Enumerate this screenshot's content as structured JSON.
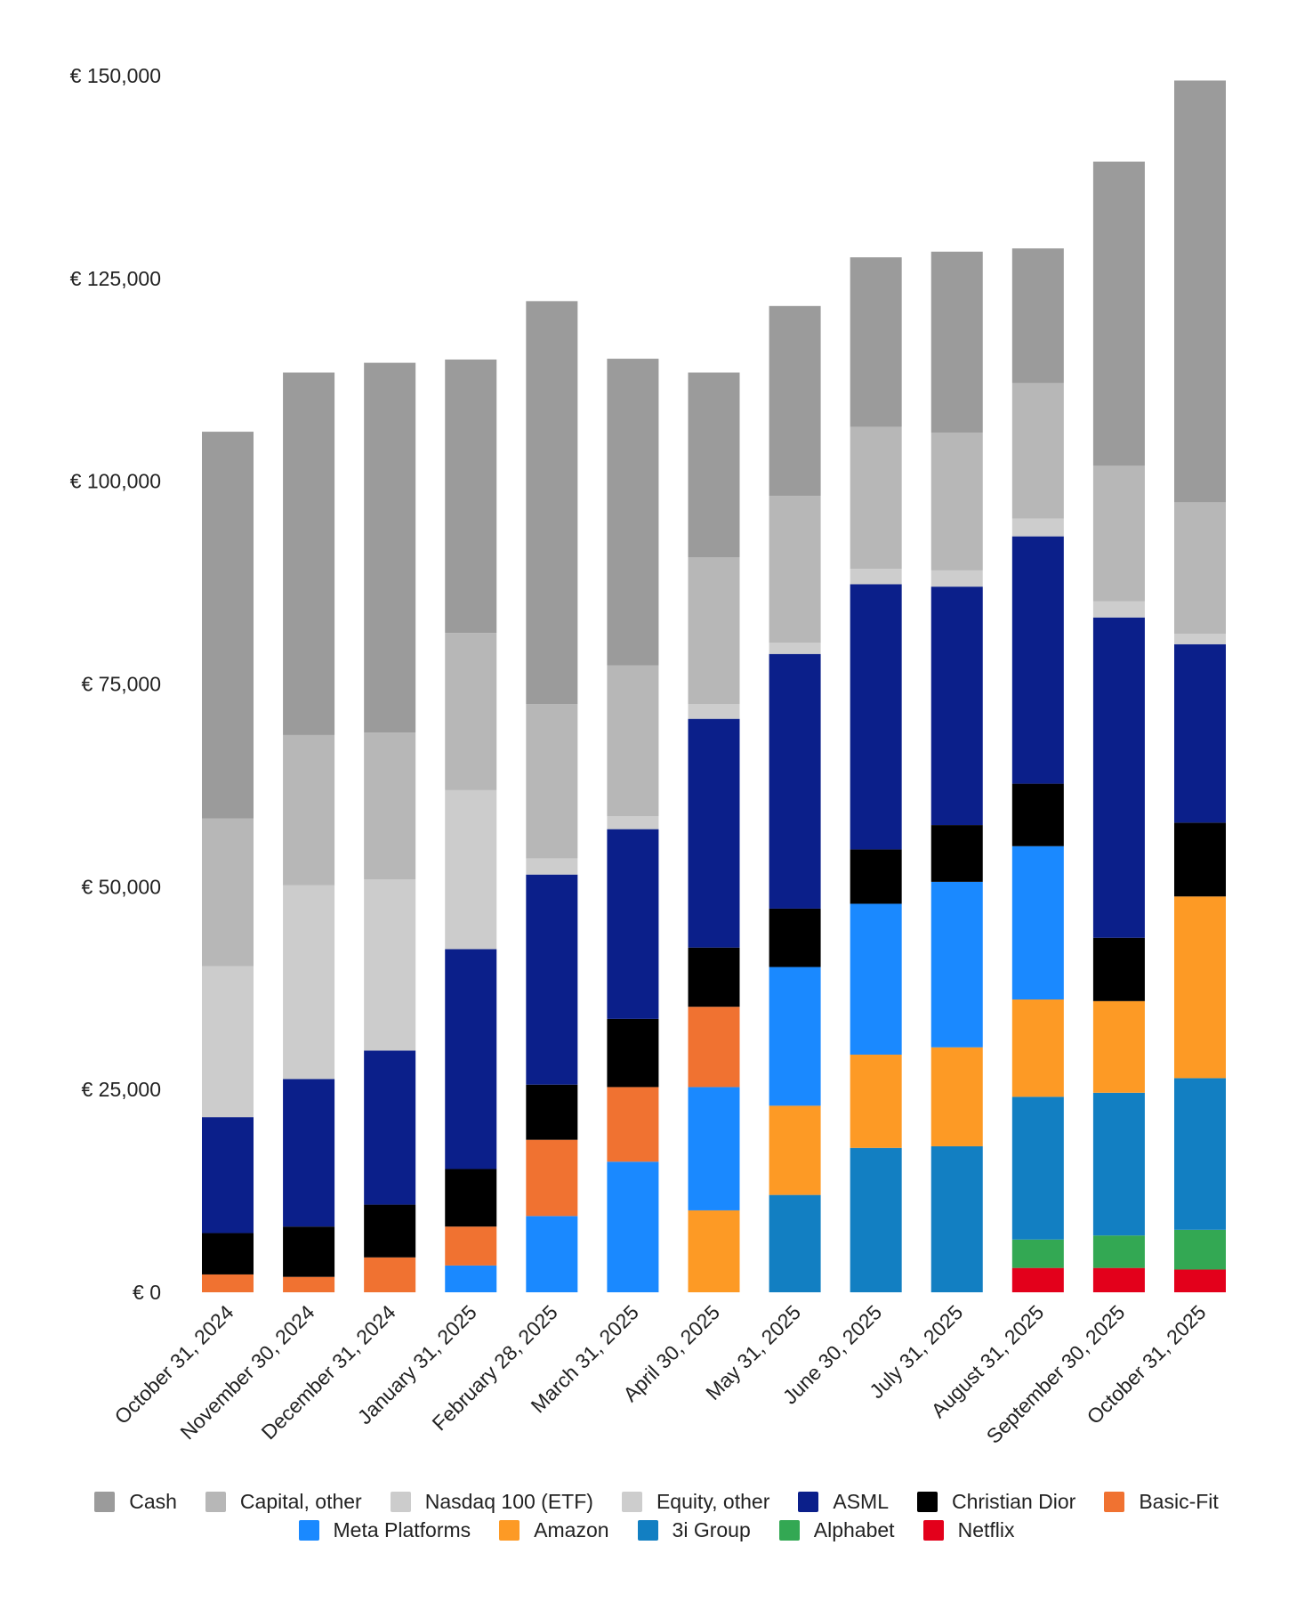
{
  "chart_data": {
    "type": "bar",
    "stacked": true,
    "title": "",
    "xlabel": "",
    "ylabel": "",
    "ylim": [
      0,
      150000
    ],
    "yticks": [
      0,
      25000,
      50000,
      75000,
      100000,
      125000,
      150000
    ],
    "ytick_labels": [
      "€ 0",
      "€ 25,000",
      "€ 50,000",
      "€ 75,000",
      "€ 100,000",
      "€ 125,000",
      "€ 150,000"
    ],
    "grid": false,
    "legend_position": "bottom",
    "categories": [
      "October 31, 2024",
      "November 30, 2024",
      "December 31, 2024",
      "January 31, 2025",
      "February 28, 2025",
      "March 31, 2025",
      "April 30, 2025",
      "May 31, 2025",
      "June 30, 2025",
      "July 31, 2025",
      "August 31, 2025",
      "September 30, 2025",
      "October 31, 2025"
    ],
    "series": [
      {
        "name": "Netflix",
        "color": "#e3001b",
        "values": [
          0,
          0,
          0,
          0,
          0,
          0,
          0,
          0,
          0,
          0,
          3000,
          3000,
          2800
        ]
      },
      {
        "name": "Alphabet",
        "color": "#33a853",
        "values": [
          0,
          0,
          0,
          0,
          0,
          0,
          0,
          0,
          0,
          0,
          3500,
          4000,
          4900
        ]
      },
      {
        "name": "3i Group",
        "color": "#127fc2",
        "values": [
          0,
          0,
          0,
          0,
          0,
          0,
          0,
          12000,
          17800,
          18000,
          17600,
          17600,
          18700
        ]
      },
      {
        "name": "Amazon",
        "color": "#fd9a25",
        "values": [
          0,
          0,
          0,
          0,
          0,
          0,
          10100,
          11000,
          11500,
          12200,
          12000,
          11300,
          22400
        ]
      },
      {
        "name": "Meta Platforms",
        "color": "#1a89ff",
        "values": [
          0,
          0,
          0,
          3300,
          9400,
          16100,
          15200,
          17100,
          18600,
          20400,
          18900,
          0,
          0
        ]
      },
      {
        "name": "Basic-Fit",
        "color": "#f07231",
        "values": [
          2200,
          1900,
          4300,
          4800,
          9400,
          9200,
          9900,
          0,
          0,
          0,
          0,
          0,
          0
        ]
      },
      {
        "name": "Christian Dior",
        "color": "#000000",
        "values": [
          5100,
          6200,
          6500,
          7100,
          6800,
          8400,
          7300,
          7200,
          6700,
          7000,
          7700,
          7800,
          9100
        ]
      },
      {
        "name": "ASML",
        "color": "#0b1f8a",
        "values": [
          14300,
          18200,
          19000,
          27100,
          25900,
          23400,
          28200,
          31400,
          32700,
          29400,
          30500,
          39500,
          22000
        ]
      },
      {
        "name": "Equity, other",
        "color": "#cdcdcd",
        "values": [
          0,
          0,
          0,
          0,
          2000,
          1600,
          1800,
          1400,
          1900,
          2000,
          2200,
          2000,
          1300
        ]
      },
      {
        "name": "Nasdaq 100 (ETF)",
        "color": "#cccccc",
        "values": [
          18600,
          23900,
          21100,
          19600,
          0,
          0,
          0,
          0,
          0,
          0,
          0,
          0,
          0
        ]
      },
      {
        "name": "Capital, other",
        "color": "#b7b7b7",
        "values": [
          18200,
          18500,
          18100,
          19400,
          19000,
          18600,
          18100,
          18100,
          17500,
          17000,
          16700,
          16700,
          16200
        ]
      },
      {
        "name": "Cash",
        "color": "#9b9b9b",
        "values": [
          47700,
          44700,
          45600,
          33700,
          49700,
          37800,
          22800,
          23400,
          20900,
          22300,
          16600,
          37500,
          52000
        ]
      }
    ],
    "legend_order": [
      "Cash",
      "Capital, other",
      "Nasdaq 100 (ETF)",
      "Equity, other",
      "ASML",
      "Christian Dior",
      "Basic-Fit",
      "Meta Platforms",
      "Amazon",
      "3i Group",
      "Alphabet",
      "Netflix"
    ]
  }
}
